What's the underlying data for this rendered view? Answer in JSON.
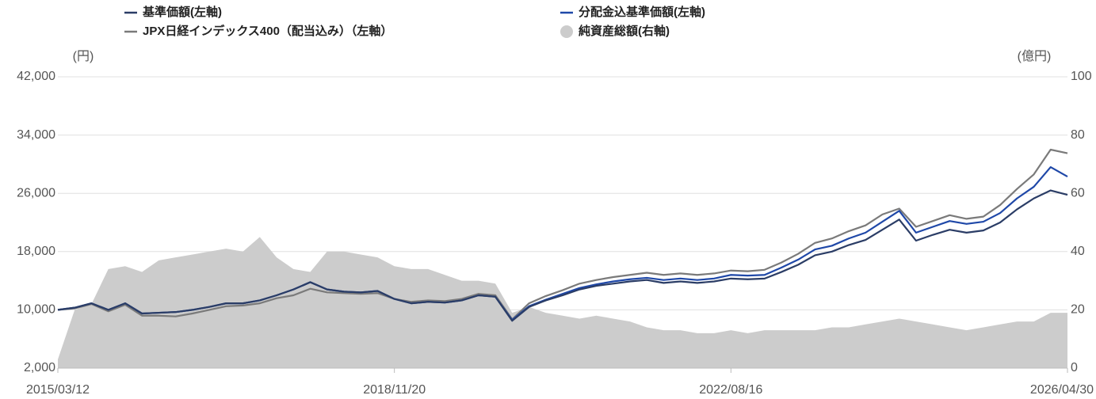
{
  "chart_data": {
    "type": "line",
    "legend": "top",
    "grid": true,
    "ylabel": "(円)",
    "y2label": "(億円)",
    "ylim": [
      2000,
      42000
    ],
    "yticks": [
      {
        "value": 2000,
        "label": "2,000"
      },
      {
        "value": 10000,
        "label": "10,000"
      },
      {
        "value": 18000,
        "label": "18,000"
      },
      {
        "value": 26000,
        "label": "26,000"
      },
      {
        "value": 34000,
        "label": "34,000"
      },
      {
        "value": 42000,
        "label": "42,000"
      }
    ],
    "y2lim": [
      0,
      100
    ],
    "y2ticks": [
      0,
      20,
      40,
      60,
      80,
      100
    ],
    "categories": [
      "2015/03/12",
      null,
      null,
      null,
      null,
      null,
      null,
      null,
      null,
      null,
      null,
      null,
      null,
      null,
      null,
      null,
      null,
      null,
      null,
      null,
      "2018/11/20",
      null,
      null,
      null,
      null,
      null,
      null,
      null,
      null,
      null,
      null,
      null,
      null,
      null,
      null,
      null,
      null,
      null,
      null,
      null,
      "2022/08/16",
      null,
      null,
      null,
      null,
      null,
      null,
      null,
      null,
      null,
      null,
      null,
      null,
      null,
      null,
      null,
      null,
      null,
      null,
      null,
      "2026/04/30"
    ],
    "series": [
      {
        "name": "純資産総額(右軸)",
        "type": "area",
        "axis": "y2",
        "color": "#cccccc",
        "values": [
          3,
          20,
          22,
          34,
          35,
          33,
          37,
          38,
          39,
          40,
          41,
          40,
          45,
          38,
          34,
          33,
          40,
          40,
          39,
          38,
          35,
          34,
          34,
          32,
          30,
          30,
          29,
          19,
          21,
          19,
          18,
          17,
          18,
          17,
          16,
          14,
          13,
          13,
          12,
          12,
          13,
          12,
          13,
          13,
          13,
          13,
          14,
          14,
          15,
          16,
          17,
          16,
          15,
          14,
          13,
          14,
          15,
          16,
          16,
          19,
          19
        ]
      },
      {
        "name": "JPX日経インデックス400（配当込み）（左軸）",
        "type": "line",
        "color": "#7a7a7a",
        "values": [
          10000,
          10200,
          10800,
          9800,
          10700,
          9200,
          9200,
          9100,
          9500,
          10000,
          10500,
          10600,
          10900,
          11600,
          12000,
          12900,
          12400,
          12300,
          12200,
          12300,
          11500,
          11100,
          11300,
          11200,
          11500,
          12200,
          12000,
          8700,
          10900,
          11900,
          12700,
          13600,
          14100,
          14500,
          14800,
          15100,
          14800,
          15000,
          14800,
          15000,
          15400,
          15300,
          15500,
          16500,
          17700,
          19200,
          19800,
          20800,
          21600,
          23100,
          23900,
          21400,
          22200,
          23000,
          22500,
          22800,
          24400,
          26600,
          28600,
          32000,
          31500
        ]
      },
      {
        "name": "分配金込基準価額(左軸)",
        "type": "line",
        "color": "#1f48a8",
        "values": [
          10000,
          10300,
          10900,
          10000,
          10900,
          9500,
          9600,
          9700,
          10000,
          10400,
          10900,
          10900,
          11300,
          12000,
          12800,
          13800,
          12800,
          12500,
          12400,
          12600,
          11500,
          10900,
          11100,
          11000,
          11300,
          12000,
          11800,
          8600,
          10500,
          11400,
          12200,
          13000,
          13500,
          13900,
          14200,
          14400,
          14100,
          14300,
          14100,
          14300,
          14800,
          14700,
          14800,
          15800,
          16900,
          18300,
          18800,
          19800,
          20600,
          22100,
          23600,
          20600,
          21400,
          22200,
          21800,
          22100,
          23300,
          25300,
          26900,
          29600,
          28300
        ]
      },
      {
        "name": "基準価額(左軸)",
        "type": "line",
        "color": "#2b3d66",
        "values": [
          10000,
          10300,
          10900,
          10000,
          10900,
          9500,
          9600,
          9700,
          10000,
          10400,
          10900,
          10900,
          11300,
          12000,
          12800,
          13800,
          12800,
          12500,
          12400,
          12600,
          11500,
          10900,
          11100,
          11000,
          11300,
          12000,
          11800,
          8500,
          10400,
          11300,
          12000,
          12800,
          13300,
          13600,
          13900,
          14100,
          13700,
          13900,
          13700,
          13900,
          14300,
          14200,
          14300,
          15200,
          16200,
          17500,
          18000,
          18900,
          19600,
          21000,
          22400,
          19500,
          20300,
          21000,
          20600,
          20900,
          22000,
          23800,
          25300,
          26400,
          25800
        ]
      }
    ]
  }
}
